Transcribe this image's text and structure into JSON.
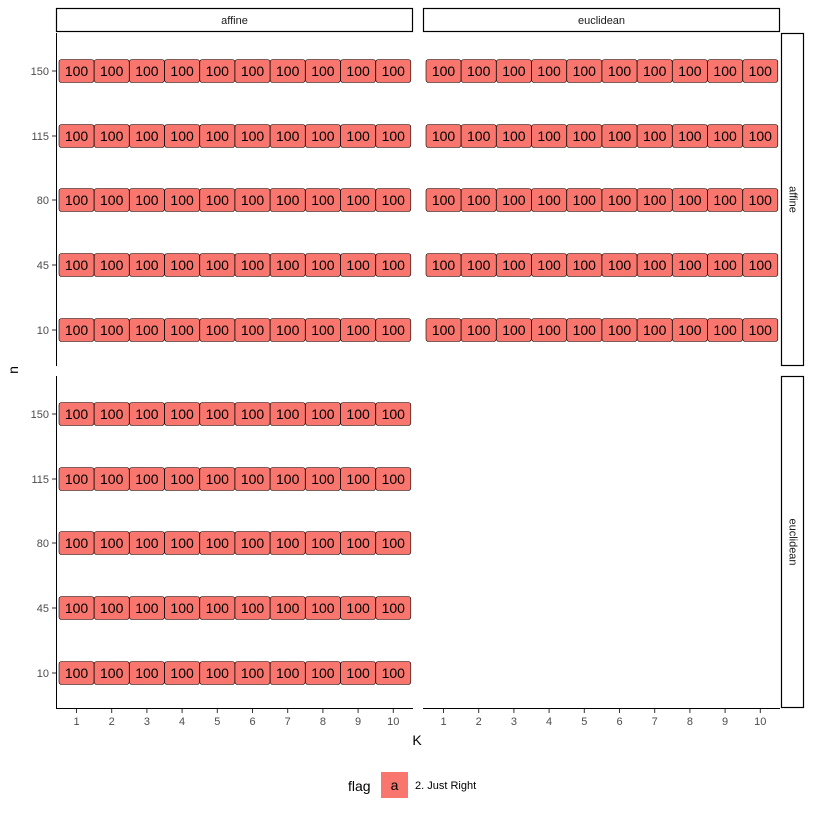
{
  "chart_data": {
    "type": "heatmap",
    "facet_columns": [
      "affine",
      "euclidean"
    ],
    "facet_rows": [
      "affine",
      "euclidean"
    ],
    "xlabel": "K",
    "ylabel": "n",
    "x": [
      1,
      2,
      3,
      4,
      5,
      6,
      7,
      8,
      9,
      10
    ],
    "y": [
      10,
      45,
      80,
      115,
      150
    ],
    "panels": [
      {
        "row": "affine",
        "col": "affine",
        "value": 100,
        "flag": "a"
      },
      {
        "row": "affine",
        "col": "euclidean",
        "value": 100,
        "flag": "a"
      },
      {
        "row": "euclidean",
        "col": "affine",
        "value": 100,
        "flag": "a"
      }
    ],
    "legend": {
      "title": "flag",
      "entries": [
        {
          "key": "a",
          "label": "2. Just Right",
          "color": "#F8766D"
        }
      ],
      "position": "bottom"
    },
    "fill_color": "#F8766D",
    "grid": false
  }
}
